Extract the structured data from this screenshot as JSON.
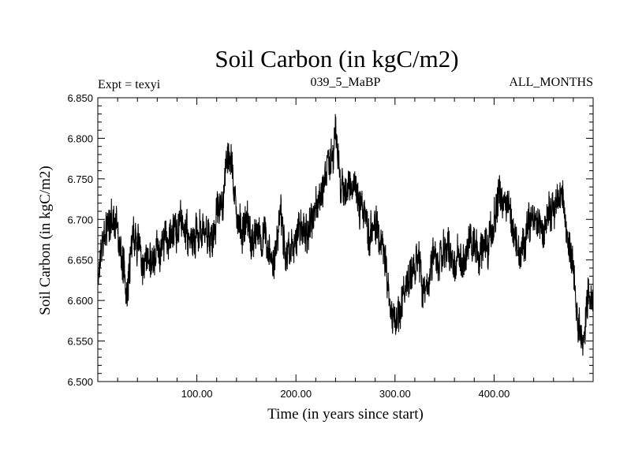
{
  "chart_data": {
    "type": "line",
    "title": "Soil Carbon (in kgC/m2)",
    "subtitle_left": "Expt = texyi",
    "subtitle_center": "039_5_MaBP",
    "subtitle_right": "ALL_MONTHS",
    "xlabel": "Time (in years since start)",
    "ylabel": "Soil Carbon (in kgC/m2)",
    "xlim": [
      0,
      500
    ],
    "ylim": [
      6.5,
      6.85
    ],
    "x_ticks": [
      100,
      200,
      300,
      400
    ],
    "x_tick_labels": [
      "100.00",
      "200.00",
      "300.00",
      "400.00"
    ],
    "y_ticks": [
      6.5,
      6.55,
      6.6,
      6.65,
      6.7,
      6.75,
      6.8,
      6.85
    ],
    "y_tick_labels": [
      "6.500",
      "6.550",
      "6.600",
      "6.650",
      "6.700",
      "6.750",
      "6.800",
      "6.850"
    ],
    "grid": false,
    "line_color": "#000000",
    "series": [
      {
        "x": [
          0,
          5,
          10,
          15,
          20,
          25,
          30,
          35,
          40,
          45,
          50,
          55,
          60,
          65,
          70,
          75,
          80,
          85,
          90,
          95,
          100,
          105,
          110,
          115,
          120,
          125,
          130,
          135,
          140,
          145,
          150,
          155,
          160,
          165,
          170,
          175,
          180,
          185,
          190,
          195,
          200,
          205,
          210,
          215,
          220,
          225,
          230,
          235,
          240,
          245,
          250,
          255,
          260,
          265,
          270,
          275,
          280,
          285,
          290,
          295,
          300,
          305,
          310,
          315,
          320,
          325,
          330,
          335,
          340,
          345,
          350,
          355,
          360,
          365,
          370,
          375,
          380,
          385,
          390,
          395,
          400,
          405,
          410,
          415,
          420,
          425,
          430,
          435,
          440,
          445,
          450,
          455,
          460,
          465,
          470,
          475,
          480,
          485,
          490,
          495,
          500
        ],
        "values": [
          6.63,
          6.66,
          6.7,
          6.71,
          6.68,
          6.64,
          6.62,
          6.68,
          6.67,
          6.65,
          6.63,
          6.64,
          6.66,
          6.67,
          6.68,
          6.68,
          6.69,
          6.7,
          6.69,
          6.67,
          6.68,
          6.69,
          6.68,
          6.67,
          6.7,
          6.72,
          6.77,
          6.78,
          6.7,
          6.68,
          6.7,
          6.67,
          6.69,
          6.68,
          6.67,
          6.66,
          6.67,
          6.7,
          6.66,
          6.67,
          6.68,
          6.69,
          6.68,
          6.7,
          6.71,
          6.73,
          6.75,
          6.77,
          6.8,
          6.75,
          6.73,
          6.74,
          6.74,
          6.72,
          6.7,
          6.68,
          6.69,
          6.68,
          6.66,
          6.59,
          6.57,
          6.58,
          6.61,
          6.63,
          6.64,
          6.63,
          6.62,
          6.64,
          6.65,
          6.65,
          6.66,
          6.66,
          6.64,
          6.67,
          6.65,
          6.67,
          6.66,
          6.65,
          6.67,
          6.68,
          6.7,
          6.74,
          6.73,
          6.72,
          6.68,
          6.66,
          6.67,
          6.7,
          6.71,
          6.7,
          6.68,
          6.71,
          6.71,
          6.73,
          6.71,
          6.69,
          6.63,
          6.57,
          6.55,
          6.6,
          6.6
        ],
        "noise_amplitude": 0.025
      }
    ]
  }
}
